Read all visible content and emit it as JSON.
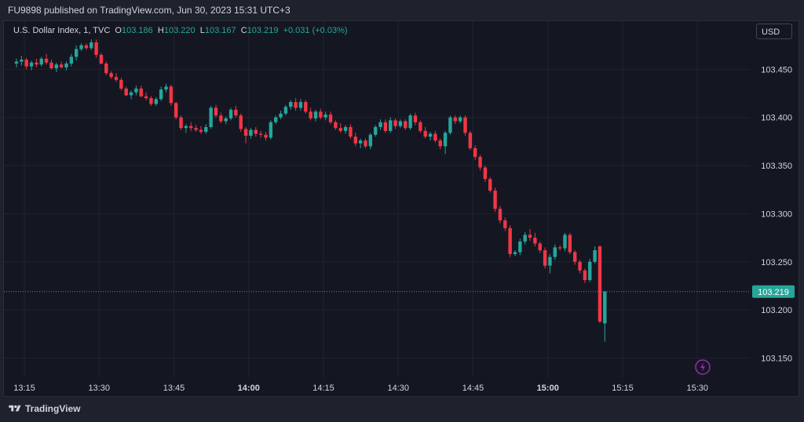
{
  "header": {
    "publish_line": "FU9898 published on TradingView.com, Jun 30, 2023 15:31 UTC+3"
  },
  "legend": {
    "symbol": "U.S. Dollar Index, 1, TVC",
    "o_label": "O",
    "o_value": "103.186",
    "h_label": "H",
    "h_value": "103.220",
    "l_label": "L",
    "l_value": "103.167",
    "c_label": "C",
    "c_value": "103.219",
    "change": "+0.031 (+0.03%)"
  },
  "currency_button": {
    "label": "USD"
  },
  "footer": {
    "brand": "TradingView"
  },
  "colors": {
    "up": "#26a69a",
    "down": "#f23645",
    "grid": "#1f2330",
    "text": "#d1d4dc",
    "price_line": "#26a69a",
    "alert": "#9c27b0"
  },
  "chart_data": {
    "type": "candlestick",
    "symbol": "U.S. Dollar Index",
    "interval": "1",
    "ylim": [
      103.13,
      103.5
    ],
    "y_ticks": [
      "103.450",
      "103.400",
      "103.350",
      "103.300",
      "103.250",
      "103.200",
      "103.150"
    ],
    "x_ticks": [
      {
        "t": "13:15",
        "bold": false
      },
      {
        "t": "13:30",
        "bold": false
      },
      {
        "t": "13:45",
        "bold": false
      },
      {
        "t": "14:00",
        "bold": true
      },
      {
        "t": "14:15",
        "bold": false
      },
      {
        "t": "14:30",
        "bold": false
      },
      {
        "t": "14:45",
        "bold": false
      },
      {
        "t": "15:00",
        "bold": true
      },
      {
        "t": "15:15",
        "bold": false
      },
      {
        "t": "15:30",
        "bold": false
      }
    ],
    "last_price": "103.219",
    "alert_icon": "lightning-icon",
    "grid": true,
    "start_time": "13:15",
    "candles": [
      [
        103.456,
        103.461,
        103.452,
        103.458
      ],
      [
        103.458,
        103.464,
        103.454,
        103.46
      ],
      [
        103.46,
        103.462,
        103.45,
        103.453
      ],
      [
        103.453,
        103.459,
        103.449,
        103.457
      ],
      [
        103.457,
        103.461,
        103.452,
        103.455
      ],
      [
        103.455,
        103.463,
        103.453,
        103.461
      ],
      [
        103.461,
        103.466,
        103.455,
        103.457
      ],
      [
        103.457,
        103.46,
        103.45,
        103.451
      ],
      [
        103.451,
        103.457,
        103.447,
        103.455
      ],
      [
        103.455,
        103.458,
        103.451,
        103.452
      ],
      [
        103.452,
        103.458,
        103.449,
        103.456
      ],
      [
        103.456,
        103.466,
        103.453,
        103.463
      ],
      [
        103.463,
        103.475,
        103.459,
        103.471
      ],
      [
        103.471,
        103.477,
        103.469,
        103.475
      ],
      [
        103.475,
        103.477,
        103.47,
        103.472
      ],
      [
        103.472,
        103.481,
        103.47,
        103.478
      ],
      [
        103.478,
        103.481,
        103.462,
        103.465
      ],
      [
        103.465,
        103.467,
        103.455,
        103.456
      ],
      [
        103.456,
        103.458,
        103.444,
        103.446
      ],
      [
        103.446,
        103.448,
        103.44,
        103.442
      ],
      [
        103.442,
        103.446,
        103.437,
        103.439
      ],
      [
        103.439,
        103.441,
        103.428,
        103.43
      ],
      [
        103.43,
        103.432,
        103.422,
        103.423
      ],
      [
        103.423,
        103.428,
        103.419,
        103.426
      ],
      [
        103.426,
        103.433,
        103.423,
        103.43
      ],
      [
        103.43,
        103.433,
        103.421,
        103.422
      ],
      [
        103.422,
        103.426,
        103.418,
        103.42
      ],
      [
        103.42,
        103.422,
        103.412,
        103.414
      ],
      [
        103.414,
        103.421,
        103.412,
        103.419
      ],
      [
        103.419,
        103.432,
        103.417,
        103.429
      ],
      [
        103.429,
        103.435,
        103.426,
        103.432
      ],
      [
        103.432,
        103.434,
        103.412,
        103.415
      ],
      [
        103.415,
        103.416,
        103.398,
        103.4
      ],
      [
        103.4,
        103.402,
        103.387,
        103.389
      ],
      [
        103.389,
        103.393,
        103.384,
        103.391
      ],
      [
        103.391,
        103.395,
        103.386,
        103.389
      ],
      [
        103.389,
        103.392,
        103.385,
        103.387
      ],
      [
        103.387,
        103.391,
        103.383,
        103.385
      ],
      [
        103.385,
        103.393,
        103.383,
        103.39
      ],
      [
        103.39,
        103.412,
        103.388,
        103.41
      ],
      [
        103.41,
        103.413,
        103.4,
        103.402
      ],
      [
        103.402,
        103.405,
        103.394,
        103.396
      ],
      [
        103.396,
        103.401,
        103.393,
        103.399
      ],
      [
        103.399,
        103.41,
        103.397,
        103.408
      ],
      [
        103.408,
        103.412,
        103.4,
        103.402
      ],
      [
        103.402,
        103.404,
        103.385,
        103.388
      ],
      [
        103.388,
        103.39,
        103.373,
        103.381
      ],
      [
        103.381,
        103.389,
        103.378,
        103.387
      ],
      [
        103.387,
        103.39,
        103.38,
        103.383
      ],
      [
        103.383,
        103.386,
        103.379,
        103.382
      ],
      [
        103.382,
        103.385,
        103.376,
        103.379
      ],
      [
        103.379,
        103.397,
        103.377,
        103.395
      ],
      [
        103.395,
        103.402,
        103.393,
        103.4
      ],
      [
        103.4,
        103.407,
        103.398,
        103.404
      ],
      [
        103.404,
        103.413,
        103.402,
        103.411
      ],
      [
        103.411,
        103.418,
        103.408,
        103.416
      ],
      [
        103.416,
        103.42,
        103.407,
        103.41
      ],
      [
        103.41,
        103.419,
        103.407,
        103.416
      ],
      [
        103.416,
        103.418,
        103.404,
        103.406
      ],
      [
        103.406,
        103.41,
        103.397,
        103.399
      ],
      [
        103.399,
        103.408,
        103.396,
        103.406
      ],
      [
        103.406,
        103.409,
        103.398,
        103.4
      ],
      [
        103.4,
        103.406,
        103.397,
        103.403
      ],
      [
        103.403,
        103.406,
        103.393,
        103.395
      ],
      [
        103.395,
        103.397,
        103.387,
        103.389
      ],
      [
        103.389,
        103.394,
        103.384,
        103.386
      ],
      [
        103.386,
        103.392,
        103.383,
        103.39
      ],
      [
        103.39,
        103.393,
        103.378,
        103.38
      ],
      [
        103.38,
        103.384,
        103.37,
        103.373
      ],
      [
        103.373,
        103.378,
        103.368,
        103.376
      ],
      [
        103.376,
        103.378,
        103.368,
        103.37
      ],
      [
        103.37,
        103.384,
        103.367,
        103.382
      ],
      [
        103.382,
        103.392,
        103.38,
        103.39
      ],
      [
        103.39,
        103.398,
        103.387,
        103.395
      ],
      [
        103.395,
        103.398,
        103.384,
        103.386
      ],
      [
        103.386,
        103.4,
        103.384,
        103.397
      ],
      [
        103.397,
        103.399,
        103.388,
        103.391
      ],
      [
        103.391,
        103.398,
        103.389,
        103.396
      ],
      [
        103.396,
        103.398,
        103.387,
        103.389
      ],
      [
        103.389,
        103.404,
        103.387,
        103.402
      ],
      [
        103.402,
        103.405,
        103.392,
        103.395
      ],
      [
        103.395,
        103.397,
        103.384,
        103.386
      ],
      [
        103.386,
        103.39,
        103.378,
        103.38
      ],
      [
        103.38,
        103.385,
        103.376,
        103.383
      ],
      [
        103.383,
        103.386,
        103.374,
        103.376
      ],
      [
        103.376,
        103.378,
        103.367,
        103.37
      ],
      [
        103.37,
        103.386,
        103.362,
        103.384
      ],
      [
        103.384,
        103.402,
        103.382,
        103.4
      ],
      [
        103.4,
        103.402,
        103.393,
        103.396
      ],
      [
        103.396,
        103.402,
        103.394,
        103.4
      ],
      [
        103.4,
        103.402,
        103.381,
        103.384
      ],
      [
        103.384,
        103.386,
        103.366,
        103.368
      ],
      [
        103.368,
        103.371,
        103.356,
        103.359
      ],
      [
        103.359,
        103.361,
        103.345,
        103.348
      ],
      [
        103.348,
        103.35,
        103.333,
        103.336
      ],
      [
        103.336,
        103.338,
        103.322,
        103.324
      ],
      [
        103.324,
        103.327,
        103.302,
        103.305
      ],
      [
        103.305,
        103.308,
        103.29,
        103.293
      ],
      [
        103.293,
        103.296,
        103.282,
        103.285
      ],
      [
        103.285,
        103.288,
        103.255,
        103.258
      ],
      [
        103.258,
        103.262,
        103.256,
        103.26
      ],
      [
        103.26,
        103.274,
        103.257,
        103.271
      ],
      [
        103.271,
        103.281,
        103.268,
        103.278
      ],
      [
        103.278,
        103.284,
        103.272,
        103.275
      ],
      [
        103.275,
        103.28,
        103.266,
        103.269
      ],
      [
        103.269,
        103.271,
        103.259,
        103.262
      ],
      [
        103.262,
        103.265,
        103.243,
        103.246
      ],
      [
        103.246,
        103.258,
        103.238,
        103.255
      ],
      [
        103.255,
        103.268,
        103.252,
        103.265
      ],
      [
        103.265,
        103.267,
        103.262,
        103.264
      ],
      [
        103.264,
        103.28,
        103.261,
        103.278
      ],
      [
        103.278,
        103.28,
        103.258,
        103.26
      ],
      [
        103.26,
        103.262,
        103.247,
        103.25
      ],
      [
        103.25,
        103.252,
        103.238,
        103.241
      ],
      [
        103.241,
        103.243,
        103.228,
        103.231
      ],
      [
        103.231,
        103.253,
        103.229,
        103.25
      ],
      [
        103.25,
        103.266,
        103.248,
        103.262
      ],
      [
        103.266,
        103.267,
        103.186,
        103.188
      ],
      [
        103.186,
        103.22,
        103.167,
        103.219
      ]
    ]
  }
}
